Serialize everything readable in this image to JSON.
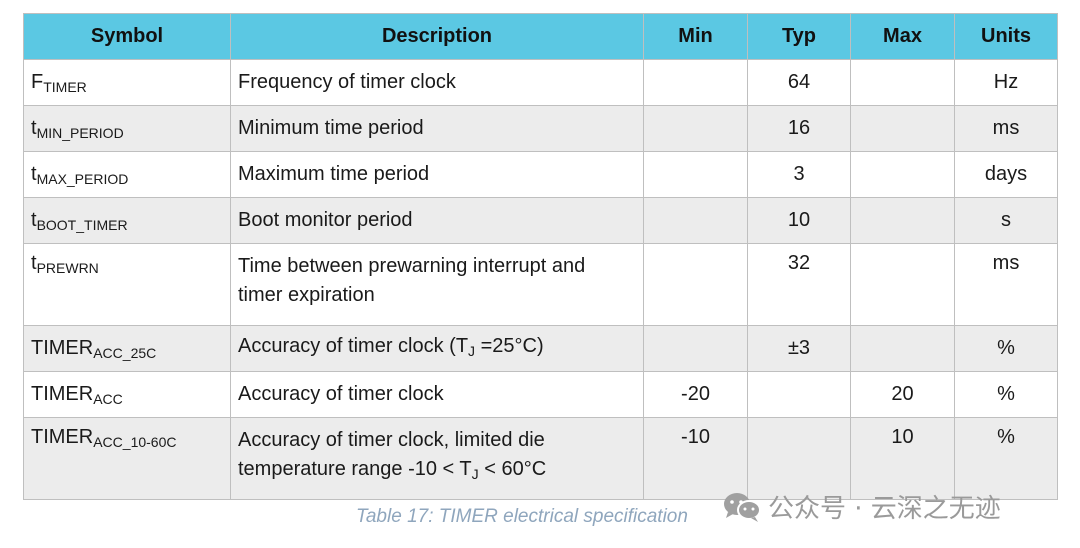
{
  "table": {
    "headers": {
      "symbol": "Symbol",
      "description": "Description",
      "min": "Min",
      "typ": "Typ",
      "max": "Max",
      "units": "Units"
    },
    "rows": [
      {
        "symbol_main": "F",
        "symbol_sub": "TIMER",
        "description": "Frequency of timer clock",
        "min": "",
        "typ": "64",
        "max": "",
        "units": "Hz"
      },
      {
        "symbol_main": "t",
        "symbol_sub": "MIN_PERIOD",
        "description": "Minimum time period",
        "min": "",
        "typ": "16",
        "max": "",
        "units": "ms"
      },
      {
        "symbol_main": "t",
        "symbol_sub": "MAX_PERIOD",
        "description": "Maximum time period",
        "min": "",
        "typ": "3",
        "max": "",
        "units": "days"
      },
      {
        "symbol_main": "t",
        "symbol_sub": "BOOT_TIMER",
        "description": "Boot monitor period",
        "min": "",
        "typ": "10",
        "max": "",
        "units": "s"
      },
      {
        "symbol_main": "t",
        "symbol_sub": "PREWRN",
        "description_line1": "Time between prewarning interrupt and",
        "description_line2": "timer expiration",
        "min": "",
        "typ": "32",
        "max": "",
        "units": "ms"
      },
      {
        "symbol_main": "TIMER",
        "symbol_sub": "ACC_25C",
        "description_pre": "Accuracy of timer clock (T",
        "description_sub": "J",
        "description_post": " =25°C)",
        "min": "",
        "typ": "±3",
        "max": "",
        "units": "%"
      },
      {
        "symbol_main": "TIMER",
        "symbol_sub": "ACC",
        "description": "Accuracy of timer clock",
        "min": "-20",
        "typ": "",
        "max": "20",
        "units": "%"
      },
      {
        "symbol_main": "TIMER",
        "symbol_sub": "ACC_10-60C",
        "description_line1": "Accuracy of timer clock, limited die",
        "description_line2_pre": "temperature range -10 < T",
        "description_line2_sub": "J",
        "description_line2_post": " < 60°C",
        "min": "-10",
        "typ": "",
        "max": "10",
        "units": "%"
      }
    ]
  },
  "caption": "Table 17: TIMER electrical specification",
  "watermark": {
    "icon": "wechat-icon",
    "text": "公众号 · 云深之无迹"
  }
}
